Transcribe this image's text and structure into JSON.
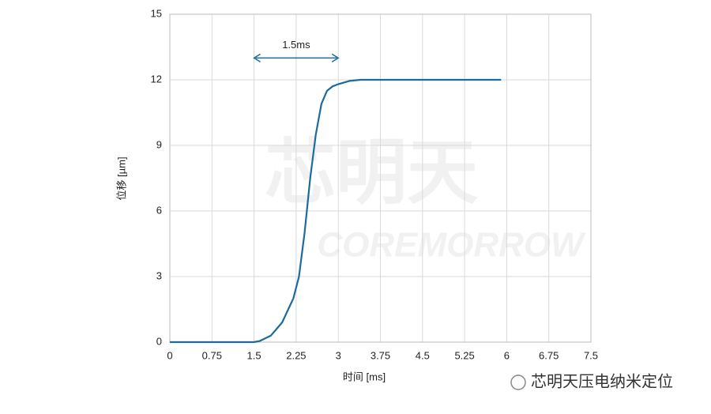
{
  "chart_data": {
    "type": "line",
    "xlabel": "时间 [ms]",
    "ylabel": "位移 [µm]",
    "x": [
      0,
      1.5,
      1.6,
      1.8,
      2.0,
      2.2,
      2.3,
      2.4,
      2.5,
      2.6,
      2.7,
      2.8,
      2.9,
      3.0,
      3.2,
      3.4,
      5.9
    ],
    "series": [
      {
        "color": "#1a6c9c",
        "values": [
          0,
          0,
          0.05,
          0.3,
          0.9,
          2.0,
          3.0,
          5.0,
          7.5,
          9.5,
          10.9,
          11.5,
          11.7,
          11.8,
          11.95,
          12,
          12
        ]
      }
    ],
    "xlim": [
      0,
      7.5
    ],
    "ylim": [
      0,
      15
    ],
    "xticks": [
      0,
      0.75,
      1.5,
      2.25,
      3,
      3.75,
      4.5,
      5.25,
      6,
      6.75,
      7.5
    ],
    "yticks": [
      0,
      3,
      6,
      9,
      12,
      15
    ],
    "grid": true,
    "annotation": {
      "text": "1.5ms",
      "x": [
        1.5,
        3
      ],
      "y": 13
    },
    "watermark": [
      "芯明天",
      "COREMORROW"
    ],
    "footer": "芯明天压电纳米定位"
  }
}
